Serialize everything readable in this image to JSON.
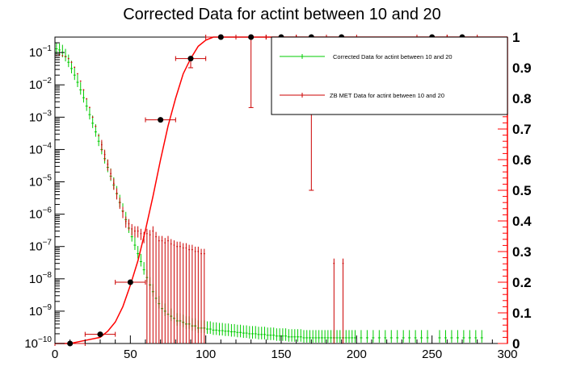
{
  "chart_data": {
    "type": "scatter",
    "title": "Corrected Data for actint between 10 and 20",
    "xlim": [
      0,
      300
    ],
    "ylim_left": [
      1e-10,
      0.3
    ],
    "ylim_right": [
      0,
      1
    ],
    "y_left_scale": "log",
    "x_ticks": [
      0,
      50,
      100,
      150,
      200,
      250,
      300
    ],
    "y_left_ticks": [
      {
        "base": "10",
        "exp": "−10",
        "value": 1e-10
      },
      {
        "base": "10",
        "exp": "−9",
        "value": 1e-09
      },
      {
        "base": "10",
        "exp": "−8",
        "value": 1e-08
      },
      {
        "base": "10",
        "exp": "−7",
        "value": 1e-07
      },
      {
        "base": "10",
        "exp": "−6",
        "value": 1e-06
      },
      {
        "base": "10",
        "exp": "−5",
        "value": 1e-05
      },
      {
        "base": "10",
        "exp": "−4",
        "value": 0.0001
      },
      {
        "base": "10",
        "exp": "−3",
        "value": 0.001
      },
      {
        "base": "10",
        "exp": "−2",
        "value": 0.01
      },
      {
        "base": "10",
        "exp": "−1",
        "value": 0.1
      }
    ],
    "y_right_ticks": [
      "0",
      "0.1",
      "0.2",
      "0.3",
      "0.4",
      "0.5",
      "0.6",
      "0.7",
      "0.8",
      "0.9",
      "1"
    ],
    "legend": {
      "placement": "top-right",
      "entries": [
        {
          "label": "Corrected Data for actint between 10 and 20",
          "color": "#00cc00"
        },
        {
          "label": "ZB MET Data for actint between 10 and 20",
          "color": "#cc0000"
        }
      ]
    },
    "series": [
      {
        "name": "Corrected Data for actint between 10 and 20",
        "color": "#00cc00",
        "axis": "left",
        "description": "green histogram with error bars; approx. points",
        "x": [
          1,
          3,
          5,
          7,
          9,
          11,
          13,
          15,
          17,
          19,
          21,
          23,
          25,
          27,
          29,
          31,
          33,
          35,
          37,
          39,
          41,
          43,
          45,
          47,
          49,
          51,
          53,
          55,
          57,
          59,
          61,
          63,
          65,
          67,
          69,
          71,
          73,
          75,
          77,
          79,
          81,
          83,
          85,
          87,
          89,
          91,
          93,
          95,
          97,
          99,
          101,
          103,
          105,
          107,
          109,
          111,
          113,
          115,
          117,
          119,
          121,
          123,
          125,
          127,
          129,
          131,
          133,
          135,
          137,
          139,
          141,
          143,
          145,
          147,
          149,
          151,
          153,
          155,
          157,
          159,
          161,
          163,
          165,
          167,
          169,
          171,
          173,
          175,
          177,
          179,
          181,
          183,
          185,
          187,
          189,
          191,
          193,
          195,
          197,
          199,
          203,
          207,
          211,
          215,
          219,
          223,
          227,
          231,
          235,
          239,
          243,
          247,
          255,
          259,
          263,
          267,
          271,
          275,
          279,
          283
        ],
        "y": [
          0.13,
          0.12,
          0.1,
          0.075,
          0.05,
          0.032,
          0.02,
          0.012,
          0.007,
          0.004,
          0.0022,
          0.0012,
          0.00065,
          0.00035,
          0.00018,
          0.0001,
          5.2e-05,
          2.8e-05,
          1.5e-05,
          8e-06,
          4.3e-06,
          2.3e-06,
          1.25e-06,
          6.8e-07,
          3.7e-07,
          2e-07,
          1.1e-07,
          6e-08,
          3.4e-08,
          1.9e-08,
          1.1e-08,
          6.5e-09,
          4e-09,
          2.5e-09,
          1.7e-09,
          1.2e-09,
          1e-09,
          8e-10,
          7e-10,
          6e-10,
          5e-10,
          5e-10,
          4.5e-10,
          4e-10,
          4e-10,
          3.5e-10,
          3.5e-10,
          3e-10,
          3e-10,
          3e-10,
          2.8e-10,
          2.8e-10,
          2.6e-10,
          2.6e-10,
          2.5e-10,
          2.5e-10,
          2.4e-10,
          2.4e-10,
          2.3e-10,
          2.3e-10,
          2.2e-10,
          2.2e-10,
          2.1e-10,
          2.1e-10,
          2e-10,
          2e-10,
          2e-10,
          1.9e-10,
          1.9e-10,
          1.9e-10,
          1.8e-10,
          1.8e-10,
          1.8e-10,
          1.7e-10,
          1.7e-10,
          1.7e-10,
          1.7e-10,
          1.6e-10,
          1.6e-10,
          1.6e-10,
          1.6e-10,
          1.6e-10,
          1.5e-10,
          1.5e-10,
          1.5e-10,
          1.5e-10,
          1.5e-10,
          1.5e-10,
          1.5e-10,
          1.5e-10,
          1.5e-10,
          1.5e-10,
          1.5e-10,
          1.5e-10,
          1.5e-10,
          1.5e-10,
          1.5e-10,
          1.5e-10,
          1.5e-10,
          1.5e-10,
          1.5e-10,
          1.5e-10,
          1.5e-10,
          1.5e-10,
          1.5e-10,
          1.5e-10,
          1.5e-10,
          1.5e-10,
          1.5e-10,
          1.5e-10,
          1.5e-10,
          1.5e-10,
          1.5e-10,
          1.5e-10,
          1.5e-10,
          1.5e-10,
          1.5e-10,
          1.5e-10,
          1.5e-10,
          1.5e-10
        ]
      },
      {
        "name": "ZB MET Data for actint between 10 and 20",
        "color": "#cc0000",
        "axis": "left",
        "description": "dark red histogram with error bars; approx. points",
        "x": [
          1,
          3,
          5,
          7,
          9,
          11,
          13,
          15,
          17,
          19,
          21,
          23,
          25,
          27,
          29,
          31,
          33,
          35,
          37,
          39,
          41,
          43,
          45,
          47,
          49,
          51,
          53,
          55,
          57,
          59,
          61,
          63,
          65,
          67,
          69,
          71,
          73,
          75,
          77,
          79,
          81,
          83,
          85,
          87,
          89,
          91,
          93,
          95,
          97,
          99,
          185,
          191
        ],
        "y": [
          0.08,
          0.085,
          0.08,
          0.075,
          0.065,
          0.05,
          0.035,
          0.022,
          0.013,
          0.007,
          0.0037,
          0.002,
          0.001,
          0.00052,
          0.00027,
          0.00014,
          7e-05,
          3.5e-05,
          1.8e-05,
          9e-06,
          4.5e-06,
          2.3e-06,
          1.2e-06,
          6e-07,
          5e-07,
          3.5e-07,
          3e-07,
          3e-07,
          2.5e-07,
          2e-07,
          2.5e-07,
          2.3e-07,
          3e-07,
          2e-07,
          1.5e-07,
          1.5e-07,
          1.3e-07,
          1.5e-07,
          1.2e-07,
          1.1e-07,
          1e-07,
          1e-07,
          9e-08,
          9e-08,
          8e-08,
          8e-08,
          7e-08,
          7e-08,
          6e-08,
          6e-08,
          3e-08,
          3e-08
        ]
      },
      {
        "name": "efficiency points",
        "color": "#000000",
        "axis": "right",
        "x": [
          10,
          30,
          50,
          70,
          90,
          110,
          130,
          150,
          170,
          190,
          250,
          270
        ],
        "y": [
          0.0,
          0.03,
          0.2,
          0.73,
          0.93,
          1.0,
          1.0,
          1.0,
          1.0,
          1.0,
          1.0,
          1.0
        ],
        "x_err": [
          10,
          10,
          10,
          10,
          10,
          10,
          10,
          10,
          10,
          10,
          10,
          10
        ],
        "y_err_low": [
          0.0,
          0.0,
          0.0,
          0.0,
          0.03,
          0.0,
          0.23,
          0.15,
          0.5,
          0.1,
          0.15,
          0.15
        ]
      },
      {
        "name": "fit curve",
        "color": "#ff0000",
        "axis": "right",
        "type": "line",
        "x": [
          0,
          10,
          20,
          30,
          35,
          40,
          45,
          50,
          55,
          60,
          65,
          70,
          75,
          80,
          85,
          90,
          95,
          100,
          105,
          110,
          120,
          130,
          300
        ],
        "y": [
          0.0,
          0.0,
          0.01,
          0.02,
          0.04,
          0.07,
          0.12,
          0.19,
          0.27,
          0.37,
          0.48,
          0.6,
          0.71,
          0.8,
          0.88,
          0.93,
          0.97,
          0.99,
          1.0,
          1.0,
          1.0,
          1.0,
          1.0
        ]
      }
    ]
  }
}
